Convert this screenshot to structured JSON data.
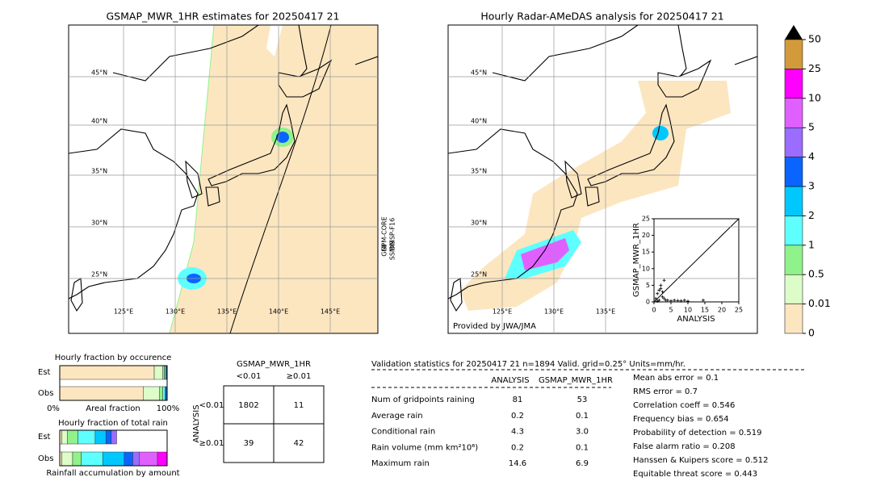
{
  "left_map": {
    "title": "GSMAP_MWR_1HR estimates for 20250417 21",
    "lat_labels": [
      "45°N",
      "40°N",
      "35°N",
      "30°N",
      "25°N"
    ],
    "lon_labels": [
      "125°E",
      "130°E",
      "135°E",
      "140°E",
      "145°E"
    ],
    "sensors": [
      "GPM-CORE",
      "DMSP-F16",
      "GMI",
      "SSMIS"
    ]
  },
  "right_map": {
    "title": "Hourly Radar-AMeDAS analysis for 20250417 21",
    "lat_labels": [
      "45°N",
      "40°N",
      "35°N",
      "30°N",
      "25°N"
    ],
    "lon_labels": [
      "125°E",
      "130°E",
      "135°E"
    ],
    "credit": "Provided by JWA/JMA"
  },
  "scatter": {
    "type": "scatter",
    "xlabel": "ANALYSIS",
    "ylabel": "GSMAP_MWR_1HR",
    "xlim": [
      0,
      25
    ],
    "ylim": [
      0,
      25
    ],
    "xticks": [
      0,
      5,
      10,
      15,
      20,
      25
    ],
    "yticks": [
      0,
      5,
      10,
      15,
      20,
      25
    ],
    "x": [
      0.5,
      1,
      1.5,
      2,
      2.5,
      3,
      3.5,
      4,
      5,
      6,
      7,
      8,
      9,
      10,
      14.5,
      1,
      2,
      3,
      1.5,
      2.5
    ],
    "y": [
      1,
      2.5,
      0.5,
      4,
      3,
      1,
      0.5,
      0.5,
      0.3,
      0.5,
      0.4,
      0.3,
      0.5,
      0.2,
      0.5,
      0.2,
      5,
      6.5,
      3.5,
      1.5
    ]
  },
  "colorbar": {
    "ticks": [
      0,
      0.01,
      0.5,
      1,
      2,
      3,
      4,
      5,
      10,
      25,
      50
    ],
    "colors": [
      "#fce6c0",
      "#dcfcc8",
      "#90f28a",
      "#5effff",
      "#00c8ff",
      "#0a64ff",
      "#9a6cff",
      "#e060ff",
      "#ff00ff",
      "#d29a3a"
    ],
    "extend_color": "#000000"
  },
  "fraction_occurrence": {
    "title": "Hourly fraction by occurence",
    "rows": [
      "Est",
      "Obs"
    ],
    "xlabel": "Areal fraction",
    "ticks": [
      "0%",
      "100%"
    ],
    "segments": [
      [
        0.88,
        0.08,
        0.015,
        0.01,
        0.01,
        0.005
      ],
      [
        0.78,
        0.15,
        0.03,
        0.02,
        0.01,
        0.01
      ]
    ],
    "colors": [
      "#fce6c0",
      "#dcfcc8",
      "#90f28a",
      "#5effff",
      "#00c8ff",
      "#0a64ff"
    ]
  },
  "fraction_total": {
    "title": "Hourly fraction of total rain",
    "rows": [
      "Est",
      "Obs"
    ],
    "xlabel": "Rainfall accumulation by amount",
    "segments": [
      [
        0.02,
        0.05,
        0.1,
        0.16,
        0.1,
        0.05,
        0.05
      ],
      [
        0.02,
        0.1,
        0.08,
        0.2,
        0.2,
        0.08,
        0.06,
        0.17,
        0.09
      ]
    ],
    "colors": [
      "#fce6c0",
      "#dcfcc8",
      "#90f28a",
      "#5effff",
      "#00c8ff",
      "#0a64ff",
      "#9a6cff",
      "#e060ff",
      "#ff00ff"
    ]
  },
  "contingency": {
    "title": "GSMAP_MWR_1HR",
    "cols": [
      "<0.01",
      "≥0.01"
    ],
    "row_title": "ANALYSIS",
    "rows": [
      "<0.01",
      "≥0.01"
    ],
    "cells": [
      [
        1802,
        11
      ],
      [
        39,
        42
      ]
    ]
  },
  "validation": {
    "header": "Validation statistics for 20250417 21  n=1894 Valid. grid=0.25° Units=mm/hr.",
    "columns": [
      "ANALYSIS",
      "GSMAP_MWR_1HR"
    ],
    "rows": [
      {
        "label": "Num of gridpoints raining",
        "values": [
          "81",
          "53"
        ]
      },
      {
        "label": "Average rain",
        "values": [
          "0.2",
          "0.1"
        ]
      },
      {
        "label": "Conditional rain",
        "values": [
          "4.3",
          "3.0"
        ]
      },
      {
        "label": "Rain volume (mm km²10⁶)",
        "values": [
          "0.2",
          "0.1"
        ]
      },
      {
        "label": "Maximum rain",
        "values": [
          "14.6",
          "6.9"
        ]
      }
    ],
    "scores": [
      "Mean abs error =    0.1",
      "RMS error =    0.7",
      "Correlation coeff =  0.546",
      "Frequency bias =  0.654",
      "Probability of detection =  0.519",
      "False alarm ratio =  0.208",
      "Hanssen & Kuipers score =  0.512",
      "Equitable threat score =  0.443"
    ]
  }
}
